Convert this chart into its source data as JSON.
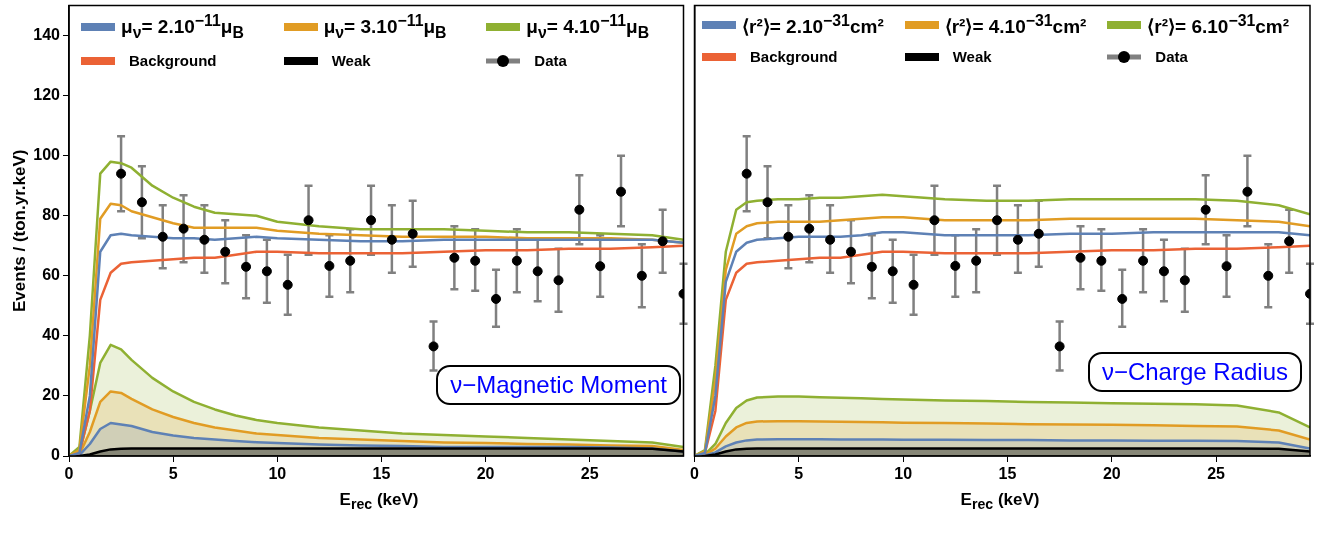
{
  "chart_data": [
    {
      "type": "line",
      "xlabel": "E$_{rec}$ (keV)",
      "ylabel": "Events / (ton.yr.keV)",
      "xlim": [
        0,
        29.5
      ],
      "xticks": [
        0,
        5,
        10,
        15,
        20,
        25
      ],
      "ylim": [
        0,
        150
      ],
      "yticks": [
        0,
        20,
        40,
        60,
        80,
        100,
        120,
        140
      ],
      "grid": false,
      "legend": "top",
      "annotations": [
        "ν−Magnetic Moment"
      ],
      "series": [
        {
          "name": "μ$_{ν}$= 2.10$^{−11}$μ$_{B}$",
          "type": "line",
          "color": "#5e81b5",
          "x": [
            0,
            0.5,
            1,
            1.5,
            2,
            2.5,
            3,
            4,
            5,
            6,
            7,
            8,
            9,
            10,
            12,
            14,
            16,
            18,
            20,
            22,
            24,
            26,
            28,
            29.5
          ],
          "values": [
            0,
            1,
            20,
            68,
            73.5,
            74,
            73.5,
            73,
            72.5,
            72.5,
            72,
            72.5,
            73,
            72.5,
            72,
            71.5,
            71.5,
            72,
            72,
            72,
            72,
            72,
            72,
            71
          ]
        },
        {
          "name": "μ$_{ν}$= 3.10$^{−11}$μ$_{B}$",
          "type": "line",
          "color": "#e19c24",
          "x": [
            0,
            0.5,
            1,
            1.5,
            2,
            2.5,
            3,
            4,
            5,
            6,
            7,
            8,
            9,
            10,
            12,
            14,
            16,
            18,
            20,
            22,
            24,
            26,
            28,
            29.5
          ],
          "values": [
            0,
            2,
            30,
            79,
            84,
            83.5,
            81.5,
            79.5,
            77.5,
            76,
            76,
            76,
            76,
            75,
            74,
            73.5,
            73,
            73,
            73,
            72.5,
            72.5,
            72.5,
            72,
            71
          ]
        },
        {
          "name": "μ$_{ν}$= 4.10$^{−11}$μ$_{B}$",
          "type": "line",
          "color": "#8fb032",
          "x": [
            0,
            0.5,
            1,
            1.5,
            2,
            2.5,
            3,
            4,
            5,
            6,
            7,
            8,
            9,
            10,
            12,
            14,
            16,
            18,
            20,
            22,
            24,
            26,
            28,
            29.5
          ],
          "values": [
            0,
            3,
            40,
            94,
            98,
            97.5,
            96,
            90,
            86,
            83,
            81,
            80.5,
            80,
            78,
            76.5,
            75.5,
            75.5,
            75.5,
            75,
            74.5,
            74.5,
            74,
            73.5,
            72
          ]
        },
        {
          "name": "Background",
          "type": "line",
          "color": "#eb6235",
          "x": [
            0,
            0.5,
            1,
            1.5,
            2,
            2.5,
            3,
            4,
            5,
            6,
            7,
            8,
            9,
            10,
            12,
            14,
            16,
            18,
            20,
            22,
            24,
            26,
            28,
            29.5
          ],
          "values": [
            0,
            1,
            15,
            52,
            61,
            64,
            64.5,
            65,
            65.5,
            66,
            66,
            67,
            68,
            68,
            67.5,
            67.5,
            67.5,
            68,
            68.5,
            68.5,
            69,
            69,
            69.5,
            70
          ]
        },
        {
          "name": "Weak",
          "type": "area",
          "color": "#000000",
          "x": [
            0,
            0.5,
            1,
            1.5,
            2,
            2.5,
            3,
            4,
            5,
            6,
            7,
            8,
            9,
            10,
            12,
            14,
            16,
            18,
            20,
            22,
            24,
            26,
            28,
            29.5
          ],
          "values": [
            0,
            0,
            0.5,
            1.5,
            2.2,
            2.4,
            2.5,
            2.5,
            2.5,
            2.5,
            2.5,
            2.5,
            2.5,
            2.5,
            2.5,
            2.5,
            2.5,
            2.5,
            2.5,
            2.5,
            2.5,
            2.5,
            2.4,
            1.5
          ]
        },
        {
          "name": "Data",
          "type": "scatter",
          "color": "#000000",
          "marker": "circle",
          "x": [
            2.5,
            3.5,
            4.5,
            5.5,
            6.5,
            7.5,
            8.5,
            9.5,
            10.5,
            11.5,
            12.5,
            13.5,
            14.5,
            15.5,
            16.5,
            17.5,
            18.5,
            19.5,
            20.5,
            21.5,
            22.5,
            23.5,
            24.5,
            25.5,
            26.5,
            27.5,
            28.5,
            29.5
          ],
          "values": [
            94,
            84.5,
            73,
            75.7,
            72,
            68,
            63,
            61.5,
            57,
            78.5,
            63.3,
            65,
            78.5,
            72,
            74,
            36.5,
            66,
            65,
            52.3,
            65,
            61.5,
            58.5,
            82,
            63.2,
            88,
            60,
            71.5,
            54
          ],
          "errors": [
            [
              81.5,
              106.5
            ],
            [
              72.5,
              96.5
            ],
            [
              62.5,
              83.5
            ],
            [
              64.5,
              86.8
            ],
            [
              61,
              83.5
            ],
            [
              57.5,
              78.5
            ],
            [
              52.5,
              73.5
            ],
            [
              51,
              72
            ],
            [
              47,
              67
            ],
            [
              67,
              90
            ],
            [
              53,
              73.5
            ],
            [
              54.5,
              75.5
            ],
            [
              67,
              90
            ],
            [
              61,
              83.5
            ],
            [
              63,
              85
            ],
            [
              28.5,
              44.8
            ],
            [
              55.5,
              76.5
            ],
            [
              55,
              75.5
            ],
            [
              43,
              62
            ],
            [
              54.5,
              75.5
            ],
            [
              51.5,
              72
            ],
            [
              48,
              69
            ],
            [
              70.5,
              93.5
            ],
            [
              53,
              73.5
            ],
            [
              76.5,
              100
            ],
            [
              49.5,
              70.5
            ],
            [
              61,
              82
            ],
            [
              44,
              64
            ]
          ]
        },
        {
          "type": "area",
          "color": "#5e81b5",
          "x": [
            0,
            0.5,
            1,
            1.5,
            2,
            2.5,
            3,
            4,
            5,
            6,
            7,
            8,
            9,
            10,
            12,
            14,
            16,
            18,
            20,
            22,
            24,
            26,
            28,
            29.5
          ],
          "values": [
            0,
            0.3,
            4,
            9,
            11,
            10.5,
            10,
            8,
            6.8,
            6,
            5.5,
            5,
            4.6,
            4.3,
            3.8,
            3.5,
            3.3,
            3,
            3,
            3,
            3,
            2.8,
            2.5,
            1.5
          ]
        },
        {
          "type": "area",
          "color": "#e19c24",
          "x": [
            0,
            0.5,
            1,
            1.5,
            2,
            2.5,
            3,
            4,
            5,
            6,
            7,
            8,
            9,
            10,
            12,
            14,
            16,
            18,
            20,
            22,
            24,
            26,
            28,
            29.5
          ],
          "values": [
            0,
            0.5,
            8,
            18,
            21.5,
            21,
            19,
            15.5,
            13,
            11,
            9.5,
            8.5,
            7.5,
            7,
            6,
            5.5,
            5,
            4.5,
            4.3,
            4,
            3.8,
            3.5,
            3.3,
            2
          ]
        },
        {
          "type": "area",
          "color": "#8fb032",
          "x": [
            0,
            0.5,
            1,
            1.5,
            2,
            2.5,
            3,
            4,
            5,
            6,
            7,
            8,
            9,
            10,
            12,
            14,
            16,
            18,
            20,
            22,
            24,
            26,
            28,
            29.5
          ],
          "values": [
            0,
            1,
            15,
            31,
            37,
            35.5,
            32,
            26,
            21.5,
            18,
            15.5,
            13.5,
            12,
            11,
            9.5,
            8.5,
            7.5,
            7,
            6.5,
            6,
            5.5,
            5,
            4.5,
            3
          ]
        }
      ]
    },
    {
      "type": "line",
      "xlabel": "E$_{rec}$ (keV)",
      "xlim": [
        0,
        29.5
      ],
      "xticks": [
        0,
        5,
        10,
        15,
        20,
        25
      ],
      "ylim": [
        0,
        150
      ],
      "yticks": [
        0,
        20,
        40,
        60,
        80,
        100,
        120,
        140
      ],
      "tick_labels": "x",
      "grid": false,
      "legend": "top",
      "annotations": [
        "ν−Charge Radius"
      ],
      "series": [
        {
          "name": "⟨r²⟩= 2.10$^{−31}$cm²",
          "type": "line",
          "color": "#5e81b5",
          "x": [
            0,
            0.5,
            1,
            1.5,
            2,
            2.5,
            3,
            4,
            5,
            6,
            7,
            8,
            9,
            10,
            12,
            14,
            16,
            18,
            20,
            22,
            24,
            26,
            28,
            29.5
          ],
          "values": [
            0,
            1,
            20,
            58,
            68,
            71,
            72,
            72.5,
            73,
            73,
            73,
            73.5,
            74.5,
            74.5,
            73.5,
            73.5,
            73.5,
            74,
            74,
            74.5,
            74.5,
            74.5,
            74.5,
            73.5
          ]
        },
        {
          "name": "⟨r²⟩= 4.10$^{−31}$cm²",
          "type": "line",
          "color": "#e19c24",
          "x": [
            0,
            0.5,
            1,
            1.5,
            2,
            2.5,
            3,
            4,
            5,
            6,
            7,
            8,
            9,
            10,
            12,
            14,
            16,
            18,
            20,
            22,
            24,
            26,
            28,
            29.5
          ],
          "values": [
            0,
            1.5,
            25,
            62,
            74,
            76.5,
            77.5,
            78,
            78,
            78,
            78.5,
            79,
            79.5,
            79.5,
            78.5,
            78.5,
            78.5,
            79,
            79,
            79,
            79,
            78.5,
            78,
            76.5
          ]
        },
        {
          "name": "⟨r²⟩= 6.10$^{−31}$cm²",
          "type": "line",
          "color": "#8fb032",
          "x": [
            0,
            0.5,
            1,
            1.5,
            2,
            2.5,
            3,
            4,
            5,
            6,
            7,
            8,
            9,
            10,
            12,
            14,
            16,
            18,
            20,
            22,
            24,
            26,
            28,
            29.5
          ],
          "values": [
            0,
            2,
            30,
            68,
            82,
            84.5,
            85,
            85.5,
            85.5,
            86,
            86,
            86.5,
            87,
            86.5,
            85.5,
            85,
            85,
            85.5,
            85.5,
            85.5,
            85.5,
            85,
            83.5,
            80.5
          ]
        },
        {
          "name": "Background",
          "type": "line",
          "color": "#eb6235",
          "x": [
            0,
            0.5,
            1,
            1.5,
            2,
            2.5,
            3,
            4,
            5,
            6,
            7,
            8,
            9,
            10,
            12,
            14,
            16,
            18,
            20,
            22,
            24,
            26,
            28,
            29.5
          ],
          "values": [
            0,
            1,
            15,
            52,
            61,
            64,
            64.5,
            65,
            65.5,
            66,
            66,
            67,
            68,
            68,
            67.5,
            67.5,
            67.5,
            68,
            68.5,
            68.5,
            69,
            69,
            69.5,
            70
          ]
        },
        {
          "name": "Weak",
          "type": "area",
          "color": "#000000",
          "x": [
            0,
            0.5,
            1,
            1.5,
            2,
            2.5,
            3,
            4,
            5,
            6,
            7,
            8,
            9,
            10,
            12,
            14,
            16,
            18,
            20,
            22,
            24,
            26,
            28,
            29.5
          ],
          "values": [
            0,
            0,
            0.5,
            1.5,
            2.2,
            2.4,
            2.5,
            2.5,
            2.5,
            2.5,
            2.5,
            2.5,
            2.5,
            2.5,
            2.5,
            2.5,
            2.5,
            2.5,
            2.5,
            2.5,
            2.5,
            2.5,
            2.4,
            1.5
          ]
        },
        {
          "name": "Data",
          "type": "scatter",
          "color": "#000000",
          "marker": "circle",
          "x": [
            2.5,
            3.5,
            4.5,
            5.5,
            6.5,
            7.5,
            8.5,
            9.5,
            10.5,
            11.5,
            12.5,
            13.5,
            14.5,
            15.5,
            16.5,
            17.5,
            18.5,
            19.5,
            20.5,
            21.5,
            22.5,
            23.5,
            24.5,
            25.5,
            26.5,
            27.5,
            28.5,
            29.5
          ],
          "values": [
            94,
            84.5,
            73,
            75.7,
            72,
            68,
            63,
            61.5,
            57,
            78.5,
            63.3,
            65,
            78.5,
            72,
            74,
            36.5,
            66,
            65,
            52.3,
            65,
            61.5,
            58.5,
            82,
            63.2,
            88,
            60,
            71.5,
            54
          ],
          "errors": [
            [
              81.5,
              106.5
            ],
            [
              72.5,
              96.5
            ],
            [
              62.5,
              83.5
            ],
            [
              64.5,
              86.8
            ],
            [
              61,
              83.5
            ],
            [
              57.5,
              78.5
            ],
            [
              52.5,
              73.5
            ],
            [
              51,
              72
            ],
            [
              47,
              67
            ],
            [
              67,
              90
            ],
            [
              53,
              73.5
            ],
            [
              54.5,
              75.5
            ],
            [
              67,
              90
            ],
            [
              61,
              83.5
            ],
            [
              63,
              85
            ],
            [
              28.5,
              44.8
            ],
            [
              55.5,
              76.5
            ],
            [
              55,
              75.5
            ],
            [
              43,
              62
            ],
            [
              54.5,
              75.5
            ],
            [
              51.5,
              72
            ],
            [
              48,
              69
            ],
            [
              70.5,
              93.5
            ],
            [
              53,
              73.5
            ],
            [
              76.5,
              100
            ],
            [
              49.5,
              70.5
            ],
            [
              61,
              82
            ],
            [
              44,
              64
            ]
          ]
        },
        {
          "type": "area",
          "color": "#5e81b5",
          "x": [
            0,
            0.5,
            1,
            1.5,
            2,
            2.5,
            3,
            4,
            5,
            6,
            7,
            8,
            9,
            10,
            12,
            14,
            16,
            18,
            20,
            22,
            24,
            26,
            28,
            29.5
          ],
          "values": [
            0,
            0.2,
            1.2,
            3.2,
            4.5,
            5.2,
            5.5,
            5.6,
            5.6,
            5.6,
            5.5,
            5.5,
            5.5,
            5.4,
            5.4,
            5.3,
            5.3,
            5.2,
            5.2,
            5.1,
            5.1,
            5,
            4.5,
            2.5
          ]
        },
        {
          "type": "area",
          "color": "#e19c24",
          "x": [
            0,
            0.5,
            1,
            1.5,
            2,
            2.5,
            3,
            4,
            5,
            6,
            7,
            8,
            9,
            10,
            12,
            14,
            16,
            18,
            20,
            22,
            24,
            26,
            28,
            29.5
          ],
          "values": [
            0,
            0.3,
            2.5,
            6.5,
            9.5,
            11,
            11.5,
            11.6,
            11.6,
            11.5,
            11.4,
            11.3,
            11.2,
            11.1,
            11,
            10.8,
            10.6,
            10.5,
            10.4,
            10.2,
            10,
            9.8,
            8.5,
            5.5
          ]
        },
        {
          "type": "area",
          "color": "#8fb032",
          "x": [
            0,
            0.5,
            1,
            1.5,
            2,
            2.5,
            3,
            4,
            5,
            6,
            7,
            8,
            9,
            10,
            12,
            14,
            16,
            18,
            20,
            22,
            24,
            26,
            28,
            29.5
          ],
          "values": [
            0,
            0.5,
            4,
            11,
            16,
            18.5,
            19.5,
            19.8,
            19.8,
            19.6,
            19.4,
            19.2,
            19,
            18.8,
            18.5,
            18.3,
            18,
            17.8,
            17.6,
            17.4,
            17.2,
            16.8,
            14.5,
            9.5
          ]
        }
      ]
    }
  ]
}
